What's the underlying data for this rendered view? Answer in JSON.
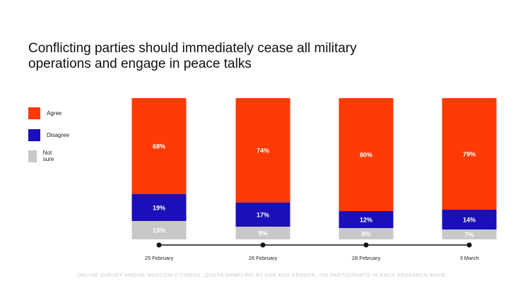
{
  "title": "Conflicting parties should immediately cease all military operations and engage in peace talks",
  "footnote": "ONLINE SURVEY AMONG MOSCOW CITIZENS, QUOTA SAMPLING BY AGE AND GENDER, 700 PARTICIPANTS IN EACH RESEARCH WAVE",
  "legend": [
    {
      "label": "Agree",
      "color": "#ff3a05"
    },
    {
      "label": "Disagree",
      "color": "#1a0fb8"
    },
    {
      "label": "Not sure",
      "color": "#c8c8c8"
    }
  ],
  "chart_data": {
    "type": "bar",
    "stacked": true,
    "categories": [
      "25 February",
      "26 February",
      "28 February",
      "3 March"
    ],
    "series": [
      {
        "name": "Not sure",
        "color": "#c8c8c8",
        "values": [
          13,
          9,
          8,
          7
        ],
        "labels": [
          "13%",
          "9%",
          "8%",
          "7%"
        ]
      },
      {
        "name": "Disagree",
        "color": "#1a0fb8",
        "values": [
          19,
          17,
          12,
          14
        ],
        "labels": [
          "19%",
          "17%",
          "12%",
          "14%"
        ]
      },
      {
        "name": "Agree",
        "color": "#ff3a05",
        "values": [
          68,
          74,
          80,
          79
        ],
        "labels": [
          "68%",
          "74%",
          "80%",
          "79%"
        ]
      }
    ],
    "ylim": [
      0,
      100
    ],
    "grid": false,
    "legend_position": "left"
  }
}
